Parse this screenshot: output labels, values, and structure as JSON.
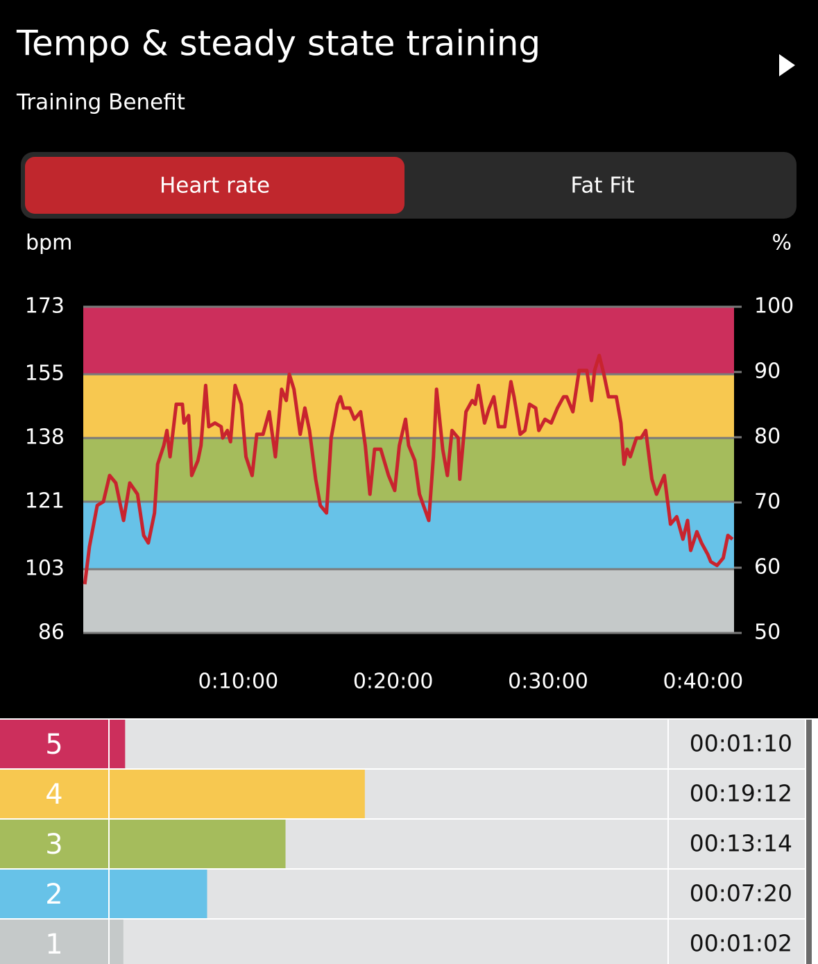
{
  "header": {
    "title": "Tempo & steady state training",
    "subtitle": "Training Benefit"
  },
  "tabs": [
    {
      "label": "Heart rate",
      "active": true
    },
    {
      "label": "Fat Fit",
      "active": false
    }
  ],
  "chart_data": {
    "type": "line",
    "y_label": "bpm",
    "y2_label": "%",
    "x": [
      0.1,
      0.4,
      0.9,
      1.3,
      1.7,
      2.1,
      2.6,
      3.0,
      3.5,
      3.9,
      4.2,
      4.6,
      4.8,
      5.2,
      5.4,
      5.6,
      6.0,
      6.4,
      6.5,
      6.8,
      7.0,
      7.4,
      7.6,
      7.9,
      8.1,
      8.5,
      8.9,
      9.0,
      9.3,
      9.5,
      9.8,
      10.2,
      10.5,
      10.9,
      11.2,
      11.6,
      12.0,
      12.4,
      12.8,
      13.1,
      13.3,
      13.6,
      14.0,
      14.3,
      14.6,
      15.0,
      15.3,
      15.7,
      16.0,
      16.4,
      16.6,
      16.8,
      17.2,
      17.5,
      17.9,
      18.2,
      18.5,
      18.8,
      19.2,
      19.7,
      20.1,
      20.4,
      20.8,
      21.0,
      21.4,
      21.7,
      22.3,
      22.6,
      22.8,
      23.2,
      23.5,
      23.8,
      24.2,
      24.3,
      24.7,
      25.1,
      25.3,
      25.5,
      25.9,
      26.2,
      26.5,
      26.8,
      27.2,
      27.6,
      27.8,
      28.2,
      28.5,
      28.8,
      29.2,
      29.4,
      29.8,
      30.2,
      30.6,
      31.0,
      31.2,
      31.6,
      32.0,
      32.5,
      32.8,
      33.0,
      33.3,
      33.6,
      33.9,
      34.4,
      34.7,
      34.9,
      35.1,
      35.3,
      35.7,
      36.0,
      36.3,
      36.7,
      37.0,
      37.5,
      37.9,
      38.3,
      38.7,
      39.0,
      39.2,
      39.6,
      39.9,
      40.3,
      40.5,
      40.9,
      41.3,
      41.6,
      41.9
    ],
    "values": [
      99,
      109,
      120,
      121,
      128,
      126,
      116,
      126,
      123,
      112,
      110,
      118,
      131,
      136,
      140,
      133,
      147,
      147,
      142,
      144,
      128,
      132,
      136,
      152,
      141,
      142,
      141,
      138,
      140,
      137,
      152,
      147,
      133,
      128,
      139,
      139,
      145,
      133,
      151,
      148,
      155,
      151,
      139,
      146,
      140,
      127,
      120,
      118,
      138,
      147,
      149,
      146,
      146,
      143,
      145,
      136,
      123,
      135,
      135,
      128,
      124,
      136,
      143,
      136,
      132,
      123,
      116,
      133,
      151,
      135,
      128,
      140,
      138,
      127,
      145,
      148,
      147,
      152,
      142,
      146,
      149,
      141,
      141,
      153,
      149,
      139,
      140,
      147,
      146,
      140,
      143,
      142,
      146,
      149,
      149,
      145,
      156,
      156,
      148,
      156,
      160,
      155,
      149,
      149,
      142,
      131,
      135,
      133,
      138,
      138,
      140,
      127,
      123,
      128,
      115,
      117,
      111,
      116,
      108,
      113,
      110,
      107,
      105,
      104,
      106,
      112,
      111
    ],
    "color": "#c8242e",
    "xlim": [
      0,
      42
    ],
    "xticks": [
      {
        "value": 10,
        "label": "0:10:00"
      },
      {
        "value": 20,
        "label": "0:20:00"
      },
      {
        "value": 30,
        "label": "0:30:00"
      },
      {
        "value": 40,
        "label": "0:40:00"
      }
    ],
    "ylim": [
      86,
      173
    ],
    "yticks": [
      86,
      103,
      121,
      138,
      155,
      173
    ],
    "y2lim": [
      50,
      100
    ],
    "y2ticks": [
      50,
      60,
      70,
      80,
      90,
      100
    ],
    "zone_colors": [
      "#c5c9c9",
      "#67c2e8",
      "#a5bc5c",
      "#f7c850",
      "#cc2f5c"
    ],
    "grid": true
  },
  "zones": {
    "labels": [
      "5",
      "4",
      "3",
      "2",
      "1"
    ],
    "values": [
      70,
      1152,
      794,
      440,
      62
    ],
    "value_labels": [
      "00:01:10",
      "00:19:12",
      "00:13:14",
      "00:07:20",
      "00:01:02"
    ],
    "colors": [
      "#cc2f5c",
      "#f7c850",
      "#a5bc5c",
      "#67c2e8",
      "#c5c9c9"
    ]
  }
}
